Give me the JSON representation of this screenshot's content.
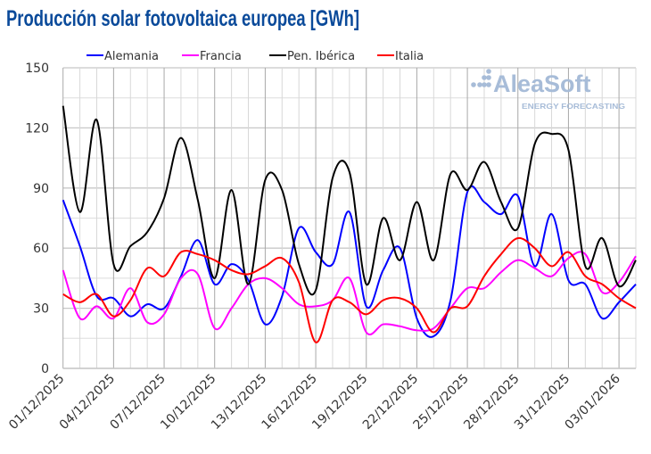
{
  "chart_data": {
    "type": "line",
    "title": "Producción solar fotovoltaica europea [GWh]",
    "xlabel": "",
    "ylabel": "",
    "ylim": [
      0,
      150
    ],
    "yticks": [
      0,
      30,
      60,
      90,
      120,
      150
    ],
    "grid": true,
    "legend_position": "top",
    "smooth": true,
    "x": [
      "01/12/2025",
      "02/12/2025",
      "03/12/2025",
      "04/12/2025",
      "05/12/2025",
      "06/12/2025",
      "07/12/2025",
      "08/12/2025",
      "09/12/2025",
      "10/12/2025",
      "11/12/2025",
      "12/12/2025",
      "13/12/2025",
      "14/12/2025",
      "15/12/2025",
      "16/12/2025",
      "17/12/2025",
      "18/12/2025",
      "19/12/2025",
      "20/12/2025",
      "21/12/2025",
      "22/12/2025",
      "23/12/2025",
      "24/12/2025",
      "25/12/2025",
      "26/12/2025",
      "27/12/2025",
      "28/12/2025",
      "29/12/2025",
      "30/12/2025",
      "31/12/2025",
      "01/01/2026",
      "02/01/2026",
      "03/01/2026",
      "04/01/2026"
    ],
    "xtick_labels": [
      "01/12/2025",
      "04/12/2025",
      "07/12/2025",
      "10/12/2025",
      "13/12/2025",
      "16/12/2025",
      "19/12/2025",
      "22/12/2025",
      "25/12/2025",
      "28/12/2025",
      "31/12/2025",
      "03/01/2026"
    ],
    "series": [
      {
        "name": "Alemania",
        "color": "#0000ff",
        "values": [
          84,
          61,
          36,
          35,
          26,
          32,
          30,
          46,
          64,
          42,
          52,
          44,
          22,
          36,
          70,
          58,
          52,
          78,
          31,
          49,
          60,
          25,
          16,
          34,
          88,
          83,
          77,
          86,
          51,
          77,
          44,
          42,
          25,
          33,
          42
        ]
      },
      {
        "name": "Francia",
        "color": "#ff00ff",
        "values": [
          49,
          25,
          31,
          25,
          40,
          23,
          27,
          45,
          47,
          20,
          30,
          42,
          45,
          40,
          32,
          31,
          34,
          45,
          18,
          22,
          21,
          19,
          20,
          30,
          40,
          40,
          48,
          54,
          50,
          46,
          55,
          57,
          38,
          43,
          56
        ]
      },
      {
        "name": "Pen. Ibérica",
        "color": "#000000",
        "values": [
          131,
          78,
          124,
          52,
          61,
          68,
          85,
          115,
          84,
          45,
          89,
          42,
          94,
          89,
          52,
          39,
          95,
          98,
          42,
          75,
          54,
          83,
          54,
          97,
          89,
          103,
          83,
          70,
          112,
          117,
          109,
          51,
          65,
          41,
          54
        ]
      },
      {
        "name": "Italia",
        "color": "#ff0000",
        "values": [
          37,
          33,
          37,
          26,
          34,
          50,
          46,
          58,
          57,
          54,
          49,
          47,
          51,
          55,
          43,
          13,
          34,
          33,
          27,
          34,
          35,
          30,
          18,
          30,
          31,
          46,
          57,
          65,
          60,
          51,
          58,
          46,
          42,
          35,
          30
        ]
      }
    ]
  },
  "watermark": {
    "brand": "AleaSoft",
    "tagline": "ENERGY FORECASTING",
    "color": "#a7bcd8"
  }
}
